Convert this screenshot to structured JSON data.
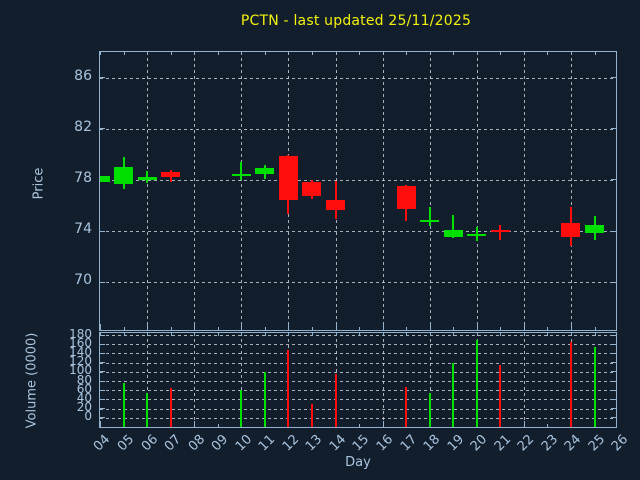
{
  "title": "PCTN - last updated 25/11/2025",
  "colors": {
    "background": "#131e2d",
    "frame": "#93b2d0",
    "tick_label": "#a9c5df",
    "grid": "#cdd6de",
    "title": "#f2f20e",
    "up": "#00e000",
    "down": "#ff0d0d"
  },
  "price_axis": {
    "label": "Price",
    "tick_values": [
      86,
      82,
      78,
      74,
      70
    ],
    "ylim": [
      66.1,
      88.0
    ]
  },
  "volume_axis": {
    "label": "Volume (0000)",
    "tick_values": [
      180,
      160,
      140,
      120,
      100,
      80,
      60,
      40,
      20,
      0
    ],
    "ylim": [
      -24.4,
      184.4
    ]
  },
  "day_axis": {
    "label": "Day",
    "tick_labels": [
      "04",
      "05",
      "06",
      "07",
      "08",
      "09",
      "10",
      "11",
      "12",
      "13",
      "14",
      "15",
      "16",
      "17",
      "18",
      "19",
      "20",
      "21",
      "22",
      "23",
      "24",
      "25",
      "26"
    ],
    "range": [
      4,
      26
    ],
    "gridline_days": [
      6,
      8,
      10,
      12,
      14,
      16,
      18,
      20,
      22,
      24
    ]
  },
  "chart_data": [
    {
      "type": "candlestick",
      "title": "PCTN - last updated 25/11/2025",
      "xlabel": "Day",
      "ylabel": "Price",
      "ylim": [
        66.1,
        88.0
      ],
      "x": [
        4,
        5,
        6,
        7,
        10,
        11,
        12,
        13,
        14,
        17,
        18,
        19,
        20,
        21,
        24,
        25
      ],
      "open": [
        77.8,
        77.7,
        78.0,
        78.6,
        78.35,
        78.45,
        79.9,
        77.85,
        76.4,
        77.5,
        74.7,
        73.5,
        73.7,
        74.05,
        74.6,
        73.8
      ],
      "high": [
        78.3,
        79.8,
        78.7,
        78.8,
        79.4,
        79.2,
        79.95,
        78.0,
        77.9,
        77.6,
        75.9,
        75.25,
        74.3,
        74.45,
        75.9,
        75.2
      ],
      "low": [
        77.8,
        77.3,
        77.75,
        77.85,
        78.0,
        78.05,
        75.3,
        76.5,
        74.9,
        74.8,
        74.4,
        73.45,
        73.2,
        73.3,
        72.8,
        73.3
      ],
      "close": [
        78.3,
        79.0,
        78.2,
        78.25,
        78.45,
        78.9,
        76.45,
        76.75,
        75.6,
        75.7,
        74.9,
        74.1,
        73.8,
        73.95,
        73.5,
        74.5
      ],
      "legend": null,
      "grid": true
    },
    {
      "type": "bar",
      "xlabel": "Day",
      "ylabel": "Volume (0000)",
      "ylim": [
        -24.4,
        184.4
      ],
      "x": [
        4,
        5,
        6,
        7,
        10,
        11,
        12,
        13,
        14,
        17,
        18,
        19,
        20,
        21,
        24,
        25
      ],
      "values": [
        null,
        75,
        55,
        65,
        60,
        100,
        147,
        30,
        96,
        67,
        55,
        120,
        170,
        115,
        165,
        155
      ],
      "color_rule": "green if close >= open else red",
      "grid": true
    }
  ]
}
